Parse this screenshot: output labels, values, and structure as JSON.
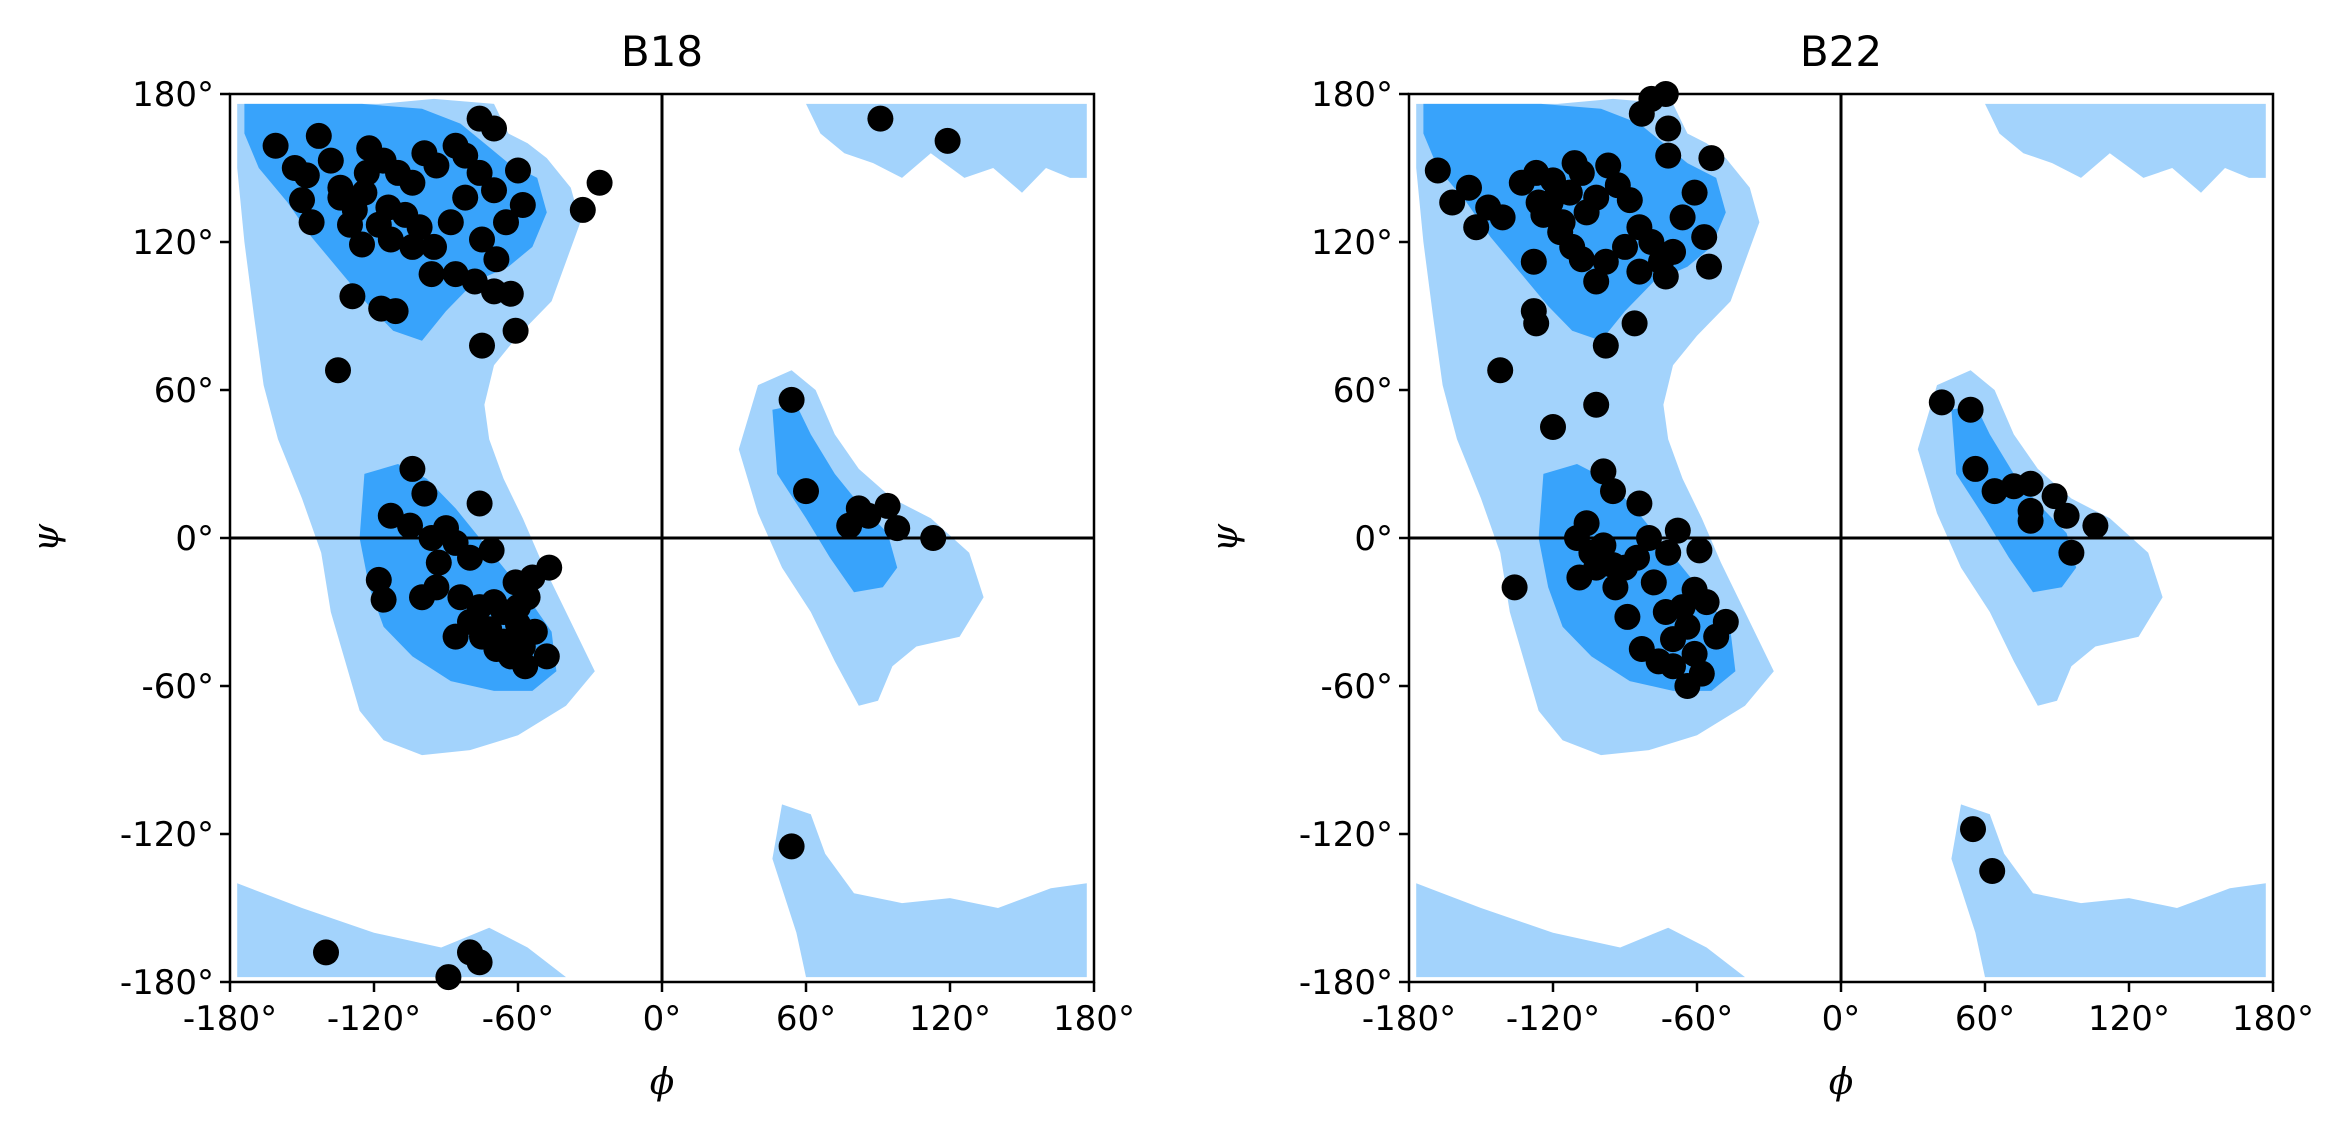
{
  "colors": {
    "contour_outer": "#a3d3fc",
    "contour_inner": "#38a3fb",
    "points": "#000000",
    "axes": "#000000"
  },
  "chart_data": [
    {
      "type": "scatter",
      "title": "B18",
      "xlabel": "ϕ",
      "ylabel": "ψ",
      "xlim": [
        -180,
        180
      ],
      "ylim": [
        -180,
        180
      ],
      "xticks": [
        -180,
        -120,
        -60,
        0,
        60,
        120,
        180
      ],
      "yticks": [
        -180,
        -120,
        -60,
        0,
        60,
        120,
        180
      ],
      "xtick_labels": [
        "-180°",
        "-120°",
        "-60°",
        "0°",
        "60°",
        "120°",
        "180°"
      ],
      "ytick_labels": [
        "-180°",
        "-120°",
        "-60°",
        "0°",
        "60°",
        "120°",
        "180°"
      ],
      "reference_lines": {
        "x": 0,
        "y": 0
      },
      "background": "Ramachandran favoured (dark blue) and allowed (light blue) density regions",
      "points": [
        [
          -161,
          159
        ],
        [
          -153,
          150
        ],
        [
          -148,
          147
        ],
        [
          -143,
          163
        ],
        [
          -138,
          153
        ],
        [
          -150,
          137
        ],
        [
          -146,
          128
        ],
        [
          -134,
          142
        ],
        [
          -128,
          133
        ],
        [
          -123,
          148
        ],
        [
          -122,
          158
        ],
        [
          -116,
          153
        ],
        [
          -110,
          148
        ],
        [
          -104,
          144
        ],
        [
          -99,
          156
        ],
        [
          -94,
          151
        ],
        [
          -86,
          159
        ],
        [
          -82,
          155
        ],
        [
          -76,
          148
        ],
        [
          -70,
          141
        ],
        [
          -76,
          170
        ],
        [
          -70,
          166
        ],
        [
          -60,
          149
        ],
        [
          -58,
          135
        ],
        [
          -65,
          128
        ],
        [
          -69,
          113
        ],
        [
          -75,
          121
        ],
        [
          -82,
          138
        ],
        [
          -88,
          128
        ],
        [
          -95,
          118
        ],
        [
          -101,
          126
        ],
        [
          -107,
          131
        ],
        [
          -113,
          121
        ],
        [
          -118,
          127
        ],
        [
          -125,
          119
        ],
        [
          -130,
          127
        ],
        [
          -134,
          138
        ],
        [
          -124,
          140
        ],
        [
          -114,
          134
        ],
        [
          -104,
          118
        ],
        [
          -96,
          107
        ],
        [
          -86,
          107
        ],
        [
          -78,
          104
        ],
        [
          -70,
          100
        ],
        [
          -63,
          99
        ],
        [
          -61,
          84
        ],
        [
          -75,
          78
        ],
        [
          -111,
          92
        ],
        [
          -117,
          93
        ],
        [
          -129,
          98
        ],
        [
          -135,
          68
        ],
        [
          -33,
          133
        ],
        [
          -26,
          144
        ],
        [
          91,
          170
        ],
        [
          119,
          161
        ],
        [
          -104,
          28
        ],
        [
          -99,
          18
        ],
        [
          -113,
          9
        ],
        [
          -105,
          5
        ],
        [
          -96,
          0
        ],
        [
          -90,
          4
        ],
        [
          -86,
          -2
        ],
        [
          -80,
          -8
        ],
        [
          -76,
          14
        ],
        [
          -71,
          -5
        ],
        [
          -93,
          -10
        ],
        [
          -100,
          -24
        ],
        [
          -94,
          -20
        ],
        [
          -118,
          -17
        ],
        [
          -116,
          -25
        ],
        [
          -84,
          -24
        ],
        [
          -80,
          -34
        ],
        [
          -86,
          -40
        ],
        [
          -76,
          -28
        ],
        [
          -70,
          -26
        ],
        [
          -72,
          -37
        ],
        [
          -66,
          -30
        ],
        [
          -66,
          -42
        ],
        [
          -60,
          -35
        ],
        [
          -58,
          -44
        ],
        [
          -63,
          -48
        ],
        [
          -57,
          -52
        ],
        [
          -53,
          -38
        ],
        [
          -48,
          -48
        ],
        [
          -56,
          -24
        ],
        [
          -61,
          -18
        ],
        [
          -54,
          -16
        ],
        [
          -47,
          -12
        ],
        [
          -69,
          -45
        ],
        [
          -75,
          -40
        ],
        [
          -60,
          -28
        ],
        [
          54,
          56
        ],
        [
          60,
          19
        ],
        [
          78,
          5
        ],
        [
          82,
          12
        ],
        [
          86,
          9
        ],
        [
          94,
          13
        ],
        [
          98,
          4
        ],
        [
          113,
          0
        ],
        [
          54,
          -125
        ],
        [
          -140,
          -168
        ],
        [
          -80,
          -168
        ],
        [
          -76,
          -172
        ],
        [
          -89,
          -178
        ]
      ]
    },
    {
      "type": "scatter",
      "title": "B22",
      "xlabel": "ϕ",
      "ylabel": "ψ",
      "xlim": [
        -180,
        180
      ],
      "ylim": [
        -180,
        180
      ],
      "xticks": [
        -180,
        -120,
        -60,
        0,
        60,
        120,
        180
      ],
      "yticks": [
        -180,
        -120,
        -60,
        0,
        60,
        120,
        180
      ],
      "xtick_labels": [
        "-180°",
        "-120°",
        "-60°",
        "0°",
        "60°",
        "120°",
        "180°"
      ],
      "ytick_labels": [
        "-180°",
        "-120°",
        "-60°",
        "0°",
        "60°",
        "120°",
        "180°"
      ],
      "reference_lines": {
        "x": 0,
        "y": 0
      },
      "background": "Ramachandran favoured (dark blue) and allowed (light blue) density regions",
      "points": [
        [
          -168,
          149
        ],
        [
          -162,
          136
        ],
        [
          -155,
          142
        ],
        [
          -152,
          126
        ],
        [
          -147,
          134
        ],
        [
          -141,
          130
        ],
        [
          -133,
          144
        ],
        [
          -127,
          148
        ],
        [
          -121,
          136
        ],
        [
          -116,
          128
        ],
        [
          -112,
          118
        ],
        [
          -106,
          132
        ],
        [
          -102,
          138
        ],
        [
          -97,
          151
        ],
        [
          -93,
          143
        ],
        [
          -88,
          137
        ],
        [
          -84,
          126
        ],
        [
          -79,
          120
        ],
        [
          -75,
          112
        ],
        [
          -70,
          116
        ],
        [
          -66,
          130
        ],
        [
          -61,
          140
        ],
        [
          -57,
          122
        ],
        [
          -55,
          110
        ],
        [
          -54,
          154
        ],
        [
          -72,
          166
        ],
        [
          -72,
          155
        ],
        [
          -79,
          178
        ],
        [
          -73,
          180
        ],
        [
          -83,
          172
        ],
        [
          -111,
          152
        ],
        [
          -118,
          140
        ],
        [
          -124,
          131
        ],
        [
          -128,
          112
        ],
        [
          -108,
          113
        ],
        [
          -102,
          104
        ],
        [
          -98,
          112
        ],
        [
          -90,
          118
        ],
        [
          -84,
          108
        ],
        [
          -73,
          106
        ],
        [
          -108,
          148
        ],
        [
          -113,
          140
        ],
        [
          -120,
          145
        ],
        [
          -126,
          136
        ],
        [
          -117,
          124
        ],
        [
          -86,
          87
        ],
        [
          -98,
          78
        ],
        [
          -128,
          92
        ],
        [
          -127,
          87
        ],
        [
          -142,
          68
        ],
        [
          -120,
          45
        ],
        [
          -102,
          54
        ],
        [
          -99,
          27
        ],
        [
          -95,
          19
        ],
        [
          -106,
          6
        ],
        [
          -110,
          0
        ],
        [
          -104,
          -6
        ],
        [
          -99,
          -3
        ],
        [
          -109,
          -16
        ],
        [
          -102,
          -12
        ],
        [
          -95,
          -11
        ],
        [
          -85,
          -8
        ],
        [
          -80,
          0
        ],
        [
          -72,
          -6
        ],
        [
          -68,
          3
        ],
        [
          -84,
          14
        ],
        [
          -78,
          -18
        ],
        [
          -73,
          -30
        ],
        [
          -89,
          -32
        ],
        [
          -83,
          -45
        ],
        [
          -76,
          -50
        ],
        [
          -70,
          -41
        ],
        [
          -64,
          -36
        ],
        [
          -61,
          -47
        ],
        [
          -58,
          -55
        ],
        [
          -52,
          -40
        ],
        [
          -48,
          -34
        ],
        [
          -56,
          -26
        ],
        [
          -61,
          -21
        ],
        [
          -66,
          -28
        ],
        [
          -70,
          -52
        ],
        [
          -64,
          -60
        ],
        [
          -59,
          -5
        ],
        [
          -94,
          -20
        ],
        [
          -90,
          -12
        ],
        [
          -136,
          -20
        ],
        [
          42,
          55
        ],
        [
          54,
          52
        ],
        [
          56,
          28
        ],
        [
          64,
          19
        ],
        [
          72,
          21
        ],
        [
          79,
          11
        ],
        [
          79,
          7
        ],
        [
          79,
          22
        ],
        [
          89,
          17
        ],
        [
          94,
          9
        ],
        [
          96,
          -6
        ],
        [
          106,
          5
        ],
        [
          55,
          -118
        ],
        [
          63,
          -135
        ]
      ]
    }
  ]
}
